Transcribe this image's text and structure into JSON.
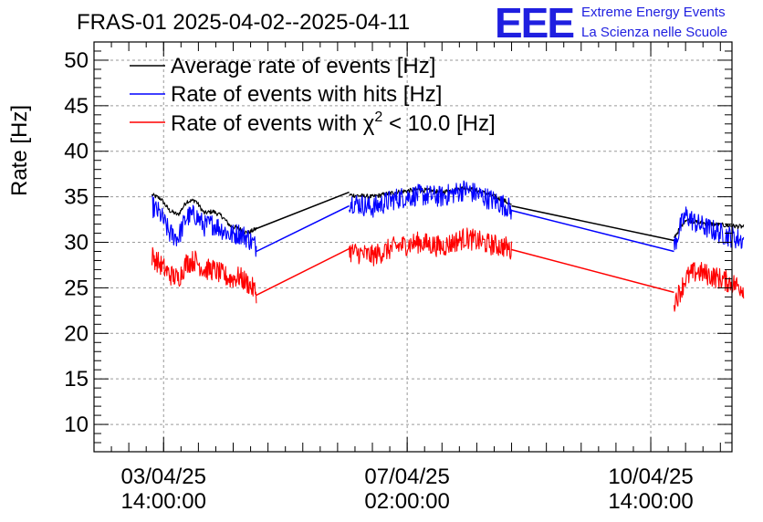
{
  "chart_data": {
    "type": "line",
    "title": "FRAS-01 2025-04-02--2025-04-11",
    "ylabel": "Rate [Hz]",
    "xlabel": "",
    "ylim": [
      7,
      52
    ],
    "y_ticks": [
      10,
      15,
      20,
      25,
      30,
      35,
      40,
      45,
      50
    ],
    "y_tick_labels": [
      "10",
      "15",
      "20",
      "25",
      "30",
      "35",
      "40",
      "45",
      "50"
    ],
    "x_ticks": [
      {
        "label_date": "03/04/25",
        "label_time": "14:00:00"
      },
      {
        "label_date": "07/04/25",
        "label_time": "02:00:00"
      },
      {
        "label_date": "10/04/25",
        "label_time": "14:00:00"
      }
    ],
    "x_unit": "hours since 2025-04-02 00:00",
    "xlim": [
      14,
      234
    ],
    "x_tick_hours": [
      38,
      122,
      206
    ],
    "grid": true,
    "legend_position": "top-left",
    "series": [
      {
        "name": "Average rate of events [Hz]",
        "color": "#000000",
        "segments": [
          {
            "x": [
              34,
              37,
              40,
              43,
              46,
              49,
              52,
              55,
              58,
              61,
              64,
              67,
              70
            ],
            "y": [
              35.2,
              34.8,
              33.5,
              33.0,
              34.5,
              34.6,
              33.2,
              33.4,
              32.9,
              31.8,
              31.5,
              31.0,
              31.5
            ]
          },
          {
            "x": [
              70,
              102
            ],
            "y": [
              31.5,
              35.5
            ]
          },
          {
            "x": [
              102,
              110,
              118,
              126,
              134,
              142,
              150,
              156,
              158
            ],
            "y": [
              35.2,
              35.0,
              35.5,
              35.8,
              35.5,
              36.0,
              35.3,
              34.5,
              34.0
            ]
          },
          {
            "x": [
              158,
              214
            ],
            "y": [
              34.0,
              30.2
            ]
          },
          {
            "x": [
              214,
              218,
              222,
              230,
              238
            ],
            "y": [
              30.5,
              32.5,
              32.2,
              31.9,
              31.7
            ]
          }
        ]
      },
      {
        "name": "Rate of events with hits [Hz]",
        "color": "#0000ff",
        "segments": [
          {
            "x": [
              34,
              37,
              40,
              43,
              46,
              49,
              52,
              55,
              58,
              61,
              64,
              67,
              70
            ],
            "y": [
              34.0,
              33.0,
              31.0,
              30.5,
              32.8,
              33.0,
              31.8,
              32.0,
              31.5,
              30.8,
              31.0,
              30.5,
              29.5
            ]
          },
          {
            "x": [
              70,
              102
            ],
            "y": [
              29.0,
              34.0
            ]
          },
          {
            "x": [
              102,
              110,
              118,
              126,
              134,
              142,
              150,
              156,
              158
            ],
            "y": [
              34.5,
              33.8,
              34.8,
              35.2,
              35.0,
              35.8,
              34.8,
              34.0,
              33.5
            ]
          },
          {
            "x": [
              158,
              214
            ],
            "y": [
              33.5,
              29.0
            ]
          },
          {
            "x": [
              214,
              216,
              218,
              222,
              230,
              238
            ],
            "y": [
              29.5,
              31.5,
              33.0,
              32.0,
              31.0,
              30.2
            ]
          }
        ]
      },
      {
        "name": "Rate of events with χ² < 10.0 [Hz]",
        "color": "#ff0000",
        "segments": [
          {
            "x": [
              34,
              37,
              40,
              43,
              46,
              49,
              52,
              55,
              58,
              61,
              64,
              67,
              70
            ],
            "y": [
              28.5,
              27.5,
              26.5,
              26.0,
              27.8,
              28.0,
              27.0,
              27.0,
              26.5,
              26.0,
              26.2,
              25.5,
              24.5
            ]
          },
          {
            "x": [
              70,
              102
            ],
            "y": [
              24.2,
              29.3
            ]
          },
          {
            "x": [
              102,
              110,
              118,
              126,
              134,
              142,
              150,
              156,
              158
            ],
            "y": [
              29.0,
              28.5,
              29.5,
              30.0,
              29.5,
              30.5,
              29.8,
              29.5,
              29.0
            ]
          },
          {
            "x": [
              158,
              214
            ],
            "y": [
              29.2,
              24.5
            ]
          },
          {
            "x": [
              214,
              216,
              218,
              220,
              222,
              230,
              238
            ],
            "y": [
              23.5,
              24.5,
              26.0,
              26.5,
              26.8,
              26.0,
              25.0
            ]
          }
        ]
      }
    ]
  },
  "legend": {
    "avg_label": "Average rate of events [Hz]",
    "hits_label": "Rate of events with hits [Hz]",
    "chi_prefix": "Rate of events with χ",
    "chi_sup": "2",
    "chi_suffix": " < 10.0 [Hz]"
  },
  "logo": {
    "mark": "EEE",
    "line1": "Extreme Energy Events",
    "line2": "La Scienza nelle Scuole",
    "color": "#1f1fe0"
  }
}
